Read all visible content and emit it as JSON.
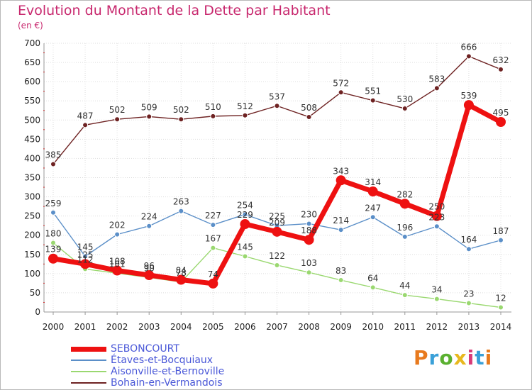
{
  "title": "Evolution du Montant de la Dette par Habitant",
  "unit": "(en €)",
  "logo": {
    "text": "Proxiti",
    "colors": [
      "#e87a1e",
      "#3aa0d8",
      "#5ab030",
      "#e8b81e",
      "#d83a78",
      "#3aa0d8",
      "#e87a1e"
    ]
  },
  "chart_data": {
    "type": "line",
    "title": "Evolution du Montant de la Dette par Habitant",
    "ylabel": "(en €)",
    "xlabel": "",
    "ylim": [
      0,
      700
    ],
    "y_ticks": [
      0,
      50,
      100,
      150,
      200,
      250,
      300,
      350,
      400,
      450,
      500,
      550,
      600,
      650,
      700
    ],
    "grid": true,
    "legend_position": "bottom-left",
    "x": [
      "2000",
      "2001",
      "2002",
      "2003",
      "2004",
      "2005",
      "2006",
      "2007",
      "2008",
      "2009",
      "2010",
      "2011",
      "2012",
      "2013",
      "2014"
    ],
    "series": [
      {
        "name": "SEBONCOURT",
        "color": "#ee1111",
        "values": [
          139,
          125,
          108,
          96,
          84,
          74,
          229,
          209,
          188,
          343,
          314,
          282,
          250,
          539,
          495
        ]
      },
      {
        "name": "Étaves-et-Bocquiaux",
        "color": "#5b8fc8",
        "values": [
          259,
          145,
          202,
          224,
          263,
          227,
          254,
          225,
          230,
          214,
          247,
          196,
          223,
          164,
          187
        ]
      },
      {
        "name": "Aisonville-et-Bernoville",
        "color": "#9ad870",
        "values": [
          180,
          112,
          101,
          90,
          78,
          167,
          145,
          122,
          103,
          83,
          64,
          44,
          34,
          23,
          12
        ]
      },
      {
        "name": "Bohain-en-Vermandois",
        "color": "#6e2222",
        "values": [
          385,
          487,
          502,
          509,
          502,
          510,
          512,
          537,
          508,
          572,
          551,
          530,
          583,
          666,
          632
        ]
      }
    ]
  }
}
